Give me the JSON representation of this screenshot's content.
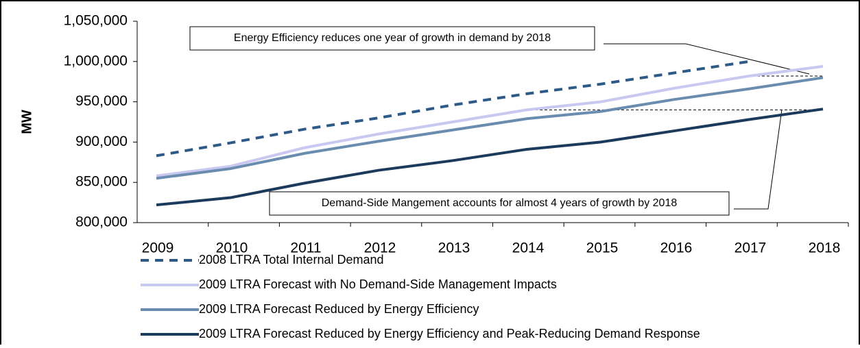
{
  "chart_data": {
    "type": "line",
    "y_label": "MW",
    "categories": [
      "2009",
      "2010",
      "2011",
      "2012",
      "2013",
      "2014",
      "2015",
      "2016",
      "2017",
      "2018"
    ],
    "series": [
      {
        "name": "2008 LTRA Total Internal Demand",
        "color": "#2e5a87",
        "dashed": true,
        "values": [
          883000,
          899000,
          916000,
          930000,
          946000,
          960000,
          972000,
          986000,
          1000000,
          null
        ]
      },
      {
        "name": "2009 LTRA Forecast with No Demand-Side Management Impacts",
        "color": "#c8c8f0",
        "dashed": false,
        "values": [
          858000,
          870000,
          893000,
          910000,
          925000,
          940000,
          950000,
          967000,
          982000,
          994000
        ]
      },
      {
        "name": "2009 LTRA Forecast Reduced by Energy Efficiency",
        "color": "#6a8caf",
        "dashed": false,
        "values": [
          855000,
          867000,
          886000,
          901000,
          915000,
          929000,
          938000,
          953000,
          966000,
          980000
        ]
      },
      {
        "name": "2009 LTRA Forecast Reduced by Energy Efficiency and Peak-Reducing Demand Response",
        "color": "#1b3a5c",
        "dashed": false,
        "values": [
          822000,
          831000,
          849000,
          865000,
          877000,
          891000,
          900000,
          914000,
          928000,
          941000
        ]
      }
    ],
    "ylim": [
      800000,
      1050000
    ],
    "yticks": [
      {
        "value": 800000,
        "label": "800,000"
      },
      {
        "value": 850000,
        "label": "850,000"
      },
      {
        "value": 900000,
        "label": "900,000"
      },
      {
        "value": 950000,
        "label": "950,000"
      },
      {
        "value": 1000000,
        "label": "1,000,000"
      },
      {
        "value": 1050000,
        "label": "1,050,000"
      }
    ],
    "annotations": [
      {
        "text": "Energy Efficiency reduces one year of growth in demand by 2018",
        "level": 982000,
        "from": "2017"
      },
      {
        "text": "Demand-Side Mangement accounts for almost 4 years of growth by 2018",
        "level": 940000,
        "from": "2014"
      }
    ]
  }
}
